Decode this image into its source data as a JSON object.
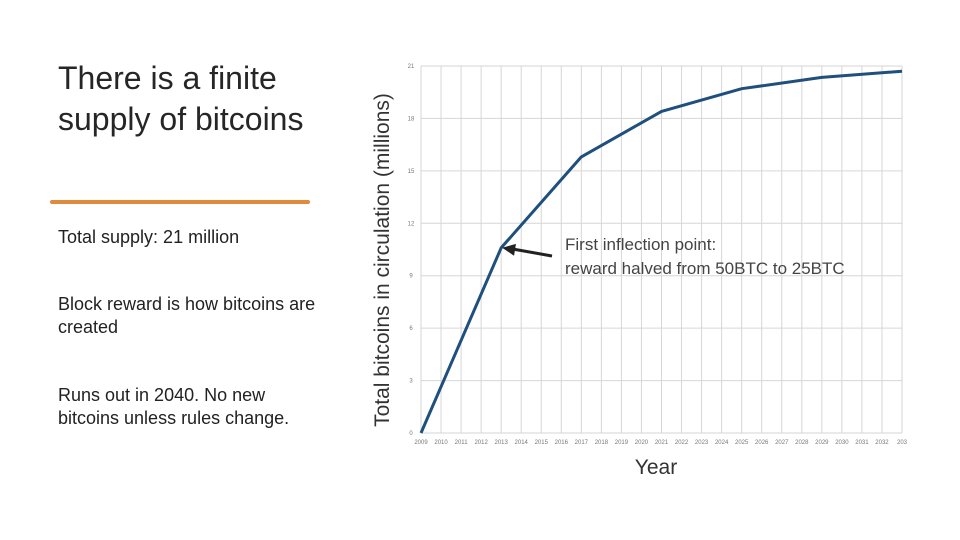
{
  "slide": {
    "title": "There is a finite supply of bitcoins",
    "bullets": [
      "Total supply: 21 million",
      "Block reward is how bitcoins are created",
      "Runs out in 2040. No new bitcoins unless rules change."
    ],
    "accent_color": "#e08a3c"
  },
  "chart_data": {
    "type": "line",
    "title": "",
    "xlabel": "Year",
    "ylabel": "Total bitcoins in circulation (millions)",
    "x": [
      "2009",
      "2010",
      "2011",
      "2012",
      "2013",
      "2014",
      "2015",
      "2016",
      "2017",
      "2018",
      "2019",
      "2020",
      "2021",
      "2022",
      "2023",
      "2024",
      "2025",
      "2026",
      "2027",
      "2028",
      "2029",
      "2030",
      "2031",
      "2032",
      "203"
    ],
    "y_ticks": [
      0,
      3,
      6,
      9,
      12,
      15,
      18,
      21
    ],
    "ylim": [
      0,
      21
    ],
    "grid": true,
    "line_color": "#1f4f7d",
    "series": [
      {
        "name": "Total bitcoins",
        "points": [
          {
            "x": 0,
            "y": 0
          },
          {
            "x": 4,
            "y": 10.6
          },
          {
            "x": 8,
            "y": 15.8
          },
          {
            "x": 12,
            "y": 18.4
          },
          {
            "x": 16,
            "y": 19.7
          },
          {
            "x": 20,
            "y": 20.35
          },
          {
            "x": 24,
            "y": 20.7
          }
        ]
      }
    ],
    "annotation": {
      "line1": "First inflection point:",
      "line2": "reward halved from 50BTC to 25BTC",
      "target": {
        "x": 4,
        "y": 10.6
      }
    }
  }
}
